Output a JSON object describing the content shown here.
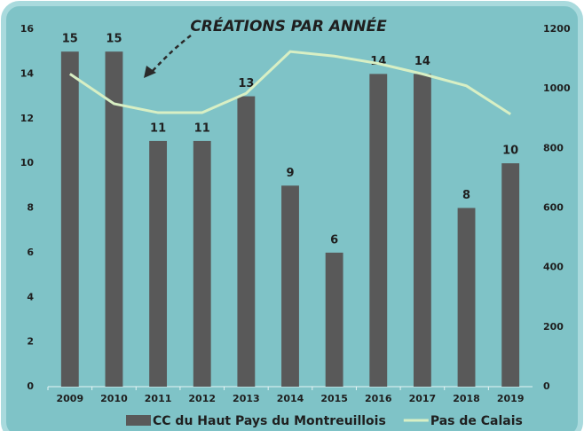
{
  "chart_data": {
    "type": "bar",
    "title": "CRÉATIONS PAR ANNÉE",
    "categories": [
      "2009",
      "2010",
      "2011",
      "2012",
      "2013",
      "2014",
      "2015",
      "2016",
      "2017",
      "2018",
      "2019"
    ],
    "series": [
      {
        "name": "CC du Haut Pays du Montreuillois",
        "type": "bar",
        "color": "#595959",
        "values": [
          15,
          15,
          11,
          11,
          13,
          9,
          6,
          14,
          14,
          8,
          10
        ]
      },
      {
        "name": "Pas de Calais",
        "type": "line",
        "axis": "y2",
        "color": "#d8efc4",
        "values": [
          1050,
          950,
          920,
          920,
          985,
          1125,
          1110,
          1085,
          1050,
          1010,
          915
        ]
      }
    ],
    "ylim": [
      0,
      16
    ],
    "yticks": [
      0,
      2,
      4,
      6,
      8,
      10,
      12,
      14,
      16
    ],
    "y2lim": [
      0,
      1200
    ],
    "y2ticks": [
      0,
      200,
      400,
      600,
      800,
      1000,
      1200
    ],
    "legend": "bottom"
  }
}
